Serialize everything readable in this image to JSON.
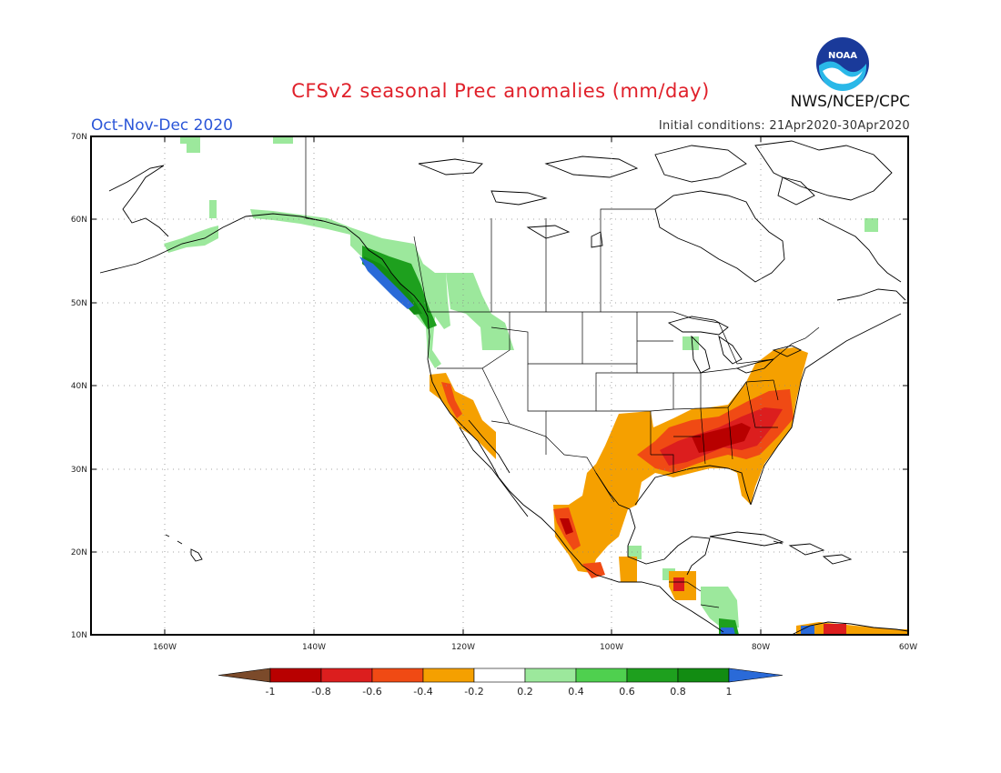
{
  "header": {
    "title": "CFSv2 seasonal Prec anomalies (mm/day)",
    "season": "Oct-Nov-Dec 2020",
    "initial_conditions": "Initial conditions: 21Apr2020-30Apr2020",
    "agency": "NWS/NCEP/CPC",
    "logo_text": "NOAA"
  },
  "map": {
    "lon_range": [
      -172,
      -60
    ],
    "lat_range": [
      10,
      70
    ],
    "y_ticks": [
      "70N",
      "60N",
      "50N",
      "40N",
      "30N",
      "20N",
      "10N"
    ],
    "x_ticks": [
      "160W",
      "140W",
      "120W",
      "100W",
      "80W",
      "60W"
    ]
  },
  "colorbar": {
    "labels": [
      "-1",
      "-0.8",
      "-0.6",
      "-0.4",
      "-0.2",
      "0.2",
      "0.4",
      "0.6",
      "0.8",
      "1"
    ],
    "colors": [
      "#7b4a2a",
      "#b80000",
      "#dc1e1e",
      "#f04a14",
      "#f5a000",
      "#ffffff",
      "#9ce89c",
      "#4fd04f",
      "#1ea01e",
      "#128c12",
      "#2a6ad8"
    ]
  }
}
